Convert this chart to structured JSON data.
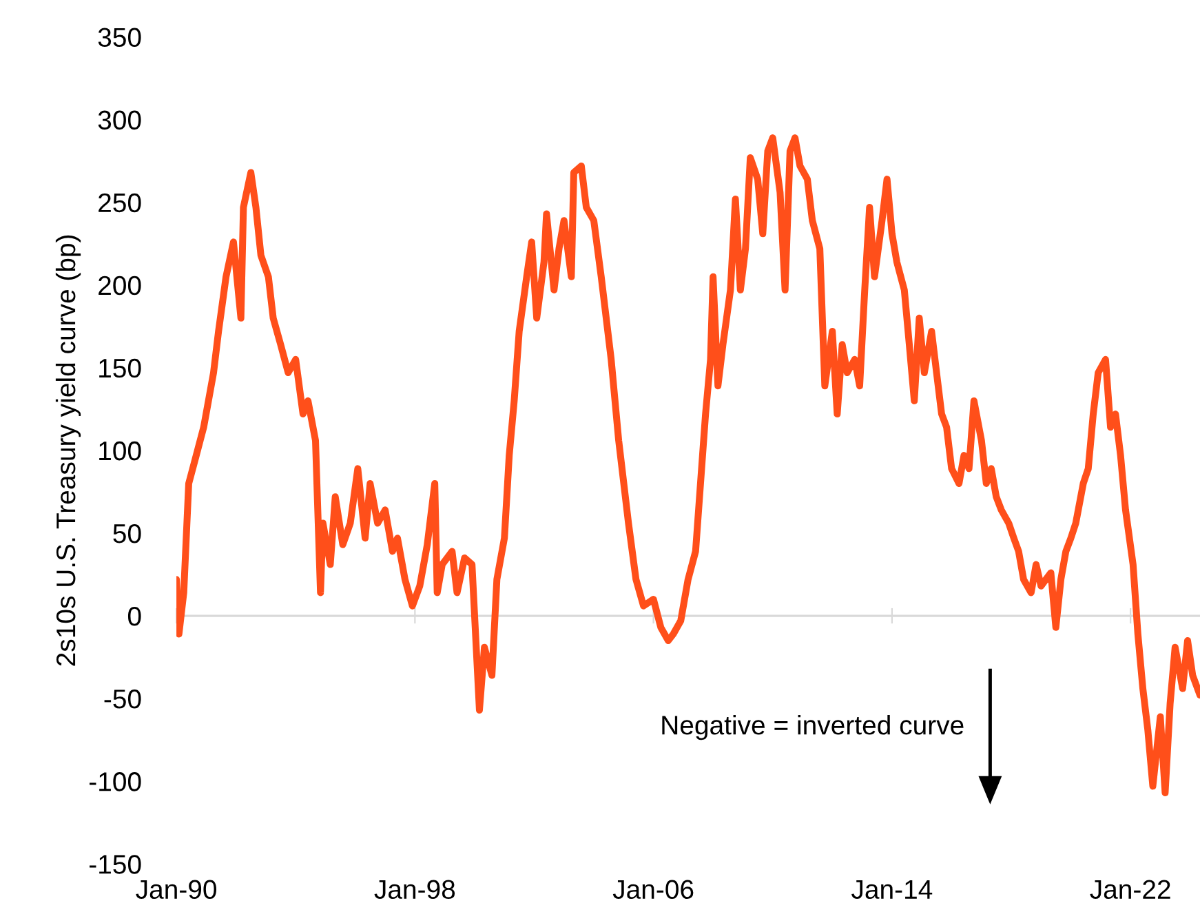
{
  "chart_data": {
    "type": "line",
    "ylabel": "2s10s U.S. Treasury yield curve (bp)",
    "annotations": [
      "Negative = inverted curve"
    ],
    "xlim": [
      "1990-01",
      "2024-05"
    ],
    "xticks": [
      {
        "value": "1990-01",
        "label": "Jan-90"
      },
      {
        "value": "1998-01",
        "label": "Jan-98"
      },
      {
        "value": "2006-01",
        "label": "Jan-06"
      },
      {
        "value": "2014-01",
        "label": "Jan-14"
      },
      {
        "value": "2022-01",
        "label": "Jan-22"
      }
    ],
    "ylim": [
      -150,
      350
    ],
    "yticks": [
      -150,
      -100,
      -50,
      0,
      50,
      100,
      150,
      200,
      250,
      300,
      350
    ],
    "ref_lines": [
      {
        "axis": "y",
        "value": 0,
        "color": "#d9d9d9"
      }
    ],
    "grid": false,
    "legend": false,
    "marker": "none",
    "line_style": "solid",
    "series": [
      {
        "color": "#ff4f1a",
        "x": [
          "1990-01",
          "1990-02",
          "1990-04",
          "1990-06",
          "1990-09",
          "1990-12",
          "1991-04",
          "1991-06",
          "1991-09",
          "1991-12",
          "1992-03",
          "1992-04",
          "1992-07",
          "1992-09",
          "1992-11",
          "1993-02",
          "1993-04",
          "1993-07",
          "1993-10",
          "1994-01",
          "1994-04",
          "1994-06",
          "1994-09",
          "1994-11",
          "1994-12",
          "1995-03",
          "1995-05",
          "1995-08",
          "1995-11",
          "1996-02",
          "1996-05",
          "1996-07",
          "1996-10",
          "1997-01",
          "1997-04",
          "1997-06",
          "1997-09",
          "1997-12",
          "1998-03",
          "1998-06",
          "1998-09",
          "1998-10",
          "1998-12",
          "1999-04",
          "1999-06",
          "1999-09",
          "1999-12",
          "2000-03",
          "2000-05",
          "2000-08",
          "2000-10",
          "2001-01",
          "2001-03",
          "2001-05",
          "2001-07",
          "2001-10",
          "2001-12",
          "2002-02",
          "2002-05",
          "2002-06",
          "2002-09",
          "2002-11",
          "2003-01",
          "2003-04",
          "2003-05",
          "2003-08",
          "2003-10",
          "2004-01",
          "2004-04",
          "2004-08",
          "2004-11",
          "2005-03",
          "2005-06",
          "2005-09",
          "2006-01",
          "2006-04",
          "2006-07",
          "2006-09",
          "2006-12",
          "2007-03",
          "2007-06",
          "2007-10",
          "2007-12",
          "2008-01",
          "2008-03",
          "2008-05",
          "2008-08",
          "2008-10",
          "2008-12",
          "2009-02",
          "2009-04",
          "2009-07",
          "2009-09",
          "2009-11",
          "2010-01",
          "2010-04",
          "2010-06",
          "2010-08",
          "2010-10",
          "2010-12",
          "2011-03",
          "2011-05",
          "2011-08",
          "2011-10",
          "2012-01",
          "2012-03",
          "2012-05",
          "2012-07",
          "2012-10",
          "2012-12",
          "2013-02",
          "2013-04",
          "2013-06",
          "2013-09",
          "2013-11",
          "2014-01",
          "2014-03",
          "2014-06",
          "2014-08",
          "2014-10",
          "2014-12",
          "2015-02",
          "2015-05",
          "2015-07",
          "2015-09",
          "2015-11",
          "2016-01",
          "2016-04",
          "2016-06",
          "2016-08",
          "2016-10",
          "2017-01",
          "2017-03",
          "2017-05",
          "2017-07",
          "2017-09",
          "2017-12",
          "2018-02",
          "2018-04",
          "2018-06",
          "2018-09",
          "2018-11",
          "2019-01",
          "2019-03",
          "2019-05",
          "2019-07",
          "2019-09",
          "2019-11",
          "2020-01",
          "2020-03",
          "2020-06",
          "2020-08",
          "2020-10",
          "2020-12",
          "2021-03",
          "2021-05",
          "2021-07",
          "2021-09",
          "2021-11",
          "2022-02",
          "2022-04",
          "2022-06",
          "2022-08",
          "2022-10",
          "2023-01",
          "2023-03",
          "2023-05",
          "2023-07",
          "2023-10",
          "2023-12",
          "2024-02",
          "2024-05"
        ],
        "values": [
          22,
          -11,
          14,
          80,
          97,
          114,
          147,
          172,
          205,
          226,
          180,
          247,
          268,
          247,
          218,
          205,
          180,
          164,
          147,
          155,
          122,
          130,
          106,
          14,
          56,
          31,
          72,
          43,
          56,
          89,
          47,
          80,
          56,
          64,
          39,
          47,
          22,
          6,
          18,
          43,
          80,
          14,
          31,
          39,
          14,
          35,
          31,
          -57,
          -19,
          -36,
          22,
          47,
          97,
          130,
          172,
          205,
          226,
          180,
          214,
          243,
          197,
          222,
          239,
          205,
          268,
          272,
          247,
          239,
          205,
          155,
          106,
          56,
          22,
          6,
          10,
          -7,
          -15,
          -11,
          -3,
          22,
          39,
          122,
          155,
          205,
          139,
          164,
          197,
          252,
          197,
          222,
          277,
          264,
          231,
          281,
          289,
          256,
          197,
          281,
          289,
          272,
          264,
          239,
          222,
          139,
          172,
          122,
          164,
          147,
          155,
          139,
          197,
          247,
          205,
          239,
          264,
          231,
          214,
          197,
          164,
          130,
          180,
          147,
          172,
          147,
          122,
          114,
          89,
          80,
          97,
          89,
          130,
          106,
          80,
          89,
          72,
          64,
          56,
          47,
          39,
          22,
          14,
          31,
          18,
          22,
          26,
          -7,
          22,
          39,
          47,
          56,
          80,
          89,
          122,
          147,
          155,
          114,
          122,
          97,
          64,
          31,
          -11,
          -44,
          -69,
          -103,
          -61,
          -107,
          -53,
          -19,
          -44,
          -15,
          -36,
          -48
        ]
      }
    ]
  }
}
